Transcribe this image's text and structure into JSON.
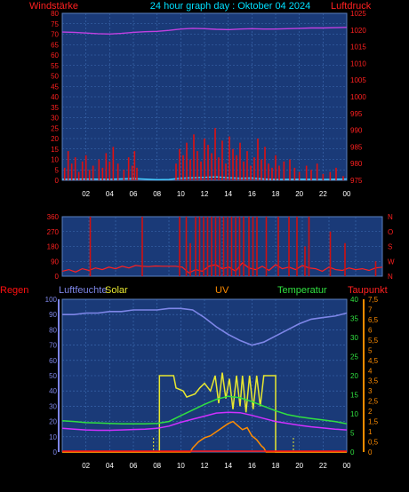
{
  "page_title": "24 hour graph day : Oktober 04 2024",
  "colors": {
    "background": "#000000",
    "plot_bg": "#1a3a78",
    "grid": "#3f6eb4",
    "axis_red": "#ff2020",
    "wind": "#e01010",
    "gust": "#40d0ff",
    "pressure": "#c040e0",
    "direction": "#d01010",
    "humidity": "#7e86e8",
    "solar": "#e8e830",
    "uv": "#ff8c00",
    "temperature": "#30e040",
    "dewpoint": "#d030ff",
    "rain": "#ff1010",
    "title": "#00e0ff"
  },
  "chart_data": [
    {
      "type": "line",
      "name": "wind-pressure",
      "left_label": "Windstärke",
      "right_label": "Luftdruck",
      "left_ticks": [
        "0",
        "5",
        "10",
        "15",
        "20",
        "25",
        "30",
        "35",
        "40",
        "45",
        "50",
        "55",
        "60",
        "65",
        "70",
        "75",
        "80"
      ],
      "right_ticks": [
        "975",
        "980",
        "985",
        "990",
        "995",
        "1000",
        "1005",
        "1010",
        "1015",
        "1020",
        "1025"
      ],
      "ylim_left": [
        0,
        80
      ],
      "ylim_right": [
        975,
        1025
      ],
      "x_ticks": [
        "02",
        "04",
        "06",
        "08",
        "10",
        "12",
        "14",
        "16",
        "18",
        "20",
        "22",
        "00"
      ],
      "xlim_hours": [
        0,
        24
      ],
      "series": [
        {
          "key": "pressure",
          "axis": "right",
          "x": [
            0,
            1,
            2,
            3,
            4,
            5,
            6,
            7,
            8,
            9,
            10,
            11,
            12,
            13,
            14,
            15,
            16,
            17,
            18,
            19,
            20,
            21,
            22,
            23,
            24
          ],
          "y": [
            1019.4,
            1019.3,
            1019.1,
            1018.9,
            1018.8,
            1019.0,
            1019.3,
            1019.5,
            1019.6,
            1019.9,
            1020.3,
            1020.5,
            1020.4,
            1020.2,
            1020.1,
            1020.3,
            1020.4,
            1020.3,
            1020.3,
            1020.4,
            1020.5,
            1020.6,
            1020.6,
            1020.7,
            1020.8
          ]
        },
        {
          "key": "gust",
          "axis": "left",
          "x": [
            0,
            2,
            4,
            5,
            6,
            8,
            9,
            10,
            11,
            12,
            13,
            14,
            15,
            16,
            17,
            18,
            20,
            22,
            24
          ],
          "y": [
            0.5,
            0.6,
            0.5,
            0.7,
            0.8,
            0.3,
            0.4,
            1.0,
            1.2,
            1.4,
            1.6,
            1.2,
            1.0,
            1.1,
            0.6,
            0.4,
            0.5,
            0.4,
            0.6
          ]
        },
        {
          "key": "wind",
          "axis": "left",
          "style": "spikes",
          "x": [
            0.2,
            0.5,
            0.8,
            1.1,
            1.4,
            1.7,
            2.0,
            2.3,
            2.6,
            3.1,
            3.4,
            3.7,
            4.0,
            4.3,
            4.7,
            5.2,
            5.6,
            5.9,
            6.1,
            6.3,
            9.6,
            9.9,
            10.2,
            10.5,
            10.8,
            11.1,
            11.4,
            11.7,
            12.0,
            12.3,
            12.6,
            12.9,
            13.2,
            13.5,
            13.8,
            14.1,
            14.4,
            14.7,
            15.0,
            15.3,
            15.6,
            15.9,
            16.2,
            16.5,
            16.8,
            17.1,
            17.4,
            17.7,
            18.0,
            18.3,
            18.7,
            19.2,
            19.6,
            20.0,
            20.6,
            21.0,
            21.5,
            22.0,
            22.6,
            23.1,
            23.7
          ],
          "y": [
            6,
            14,
            8,
            11,
            4,
            9,
            12,
            5,
            7,
            10,
            6,
            13,
            9,
            16,
            8,
            5,
            11,
            7,
            14,
            6,
            8,
            15,
            12,
            18,
            10,
            22,
            14,
            9,
            20,
            17,
            13,
            25,
            11,
            19,
            8,
            21,
            15,
            12,
            18,
            9,
            14,
            7,
            11,
            20,
            10,
            16,
            8,
            6,
            12,
            7,
            9,
            10,
            6,
            4,
            7,
            5,
            8,
            3,
            4,
            6,
            2
          ]
        }
      ]
    },
    {
      "type": "line",
      "name": "wind-direction",
      "left_ticks": [
        "0",
        "90",
        "180",
        "270",
        "360"
      ],
      "right_ticks": [
        "N",
        "W",
        "S",
        "O",
        "N"
      ],
      "ylim_left": [
        0,
        360
      ],
      "x_ticks": [],
      "xlim_hours": [
        0,
        24
      ],
      "series": [
        {
          "key": "direction",
          "axis": "left",
          "x": [
            0,
            0.5,
            1,
            1.5,
            2,
            2.5,
            3,
            3.5,
            4,
            4.5,
            5,
            5.5,
            6,
            6.5,
            7,
            7.5,
            8,
            8.5,
            9,
            9.5,
            10,
            10.5,
            11,
            11.5,
            12,
            12.5,
            13,
            13.5,
            14,
            14.5,
            15,
            15.5,
            16,
            16.5,
            17,
            17.5,
            18,
            18.5,
            19,
            19.5,
            20,
            20.5,
            21,
            21.5,
            22,
            22.5,
            23,
            23.5,
            24
          ],
          "y": [
            30,
            40,
            25,
            45,
            35,
            50,
            40,
            55,
            45,
            60,
            50,
            65,
            60,
            58,
            62,
            60,
            60,
            60,
            55,
            20,
            40,
            30,
            60,
            70,
            45,
            55,
            30,
            80,
            50,
            40,
            60,
            35,
            70,
            45,
            55,
            40,
            65,
            50,
            45,
            30,
            55,
            40,
            35,
            50,
            40,
            45,
            35,
            50,
            55
          ]
        },
        {
          "key": "direction_spikes",
          "axis": "left",
          "style": "spikes",
          "x": [
            2.1,
            6.0,
            8.8,
            9.3,
            9.6,
            10.0,
            10.3,
            10.6,
            10.9,
            11.2,
            11.5,
            11.8,
            12.1,
            12.4,
            12.7,
            13.0,
            13.3,
            13.6,
            14.0,
            14.3,
            14.6,
            15.3,
            16.2,
            17.0,
            17.6,
            18.2,
            18.5,
            20.1,
            21.2,
            23.5
          ],
          "y": [
            360,
            360,
            360,
            360,
            200,
            360,
            360,
            360,
            360,
            360,
            360,
            360,
            360,
            360,
            360,
            360,
            360,
            360,
            360,
            360,
            360,
            360,
            360,
            360,
            360,
            180,
            360,
            270,
            200,
            90
          ]
        }
      ]
    },
    {
      "type": "line",
      "name": "climate",
      "labels": {
        "rain": "Regen",
        "humidity": "Luftfeuchte",
        "solar": "Solar",
        "uv": "UV",
        "temperature": "Temperatur",
        "dewpoint": "Taupunkt"
      },
      "left_ticks": [
        "0",
        "10",
        "20",
        "30",
        "40",
        "50",
        "60",
        "70",
        "80",
        "90",
        "100"
      ],
      "temp_ticks": [
        "0",
        "5",
        "10",
        "15",
        "20",
        "25",
        "30",
        "35",
        "40"
      ],
      "uv_ticks": [
        "0",
        "0,5",
        "1",
        "1,5",
        "2",
        "2,5",
        "3",
        "3,5",
        "4",
        "4,5",
        "5",
        "5,5",
        "6",
        "6,5",
        "7",
        "7,5"
      ],
      "ylim_left": [
        0,
        100
      ],
      "ylim_temp": [
        0,
        40
      ],
      "ylim_uv": [
        0,
        7.5
      ],
      "x_ticks": [
        "02",
        "04",
        "06",
        "08",
        "10",
        "12",
        "14",
        "16",
        "18",
        "20",
        "22",
        "00"
      ],
      "xlim_hours": [
        0,
        24
      ],
      "series": [
        {
          "key": "humidity",
          "axis": "left",
          "x": [
            0,
            1,
            2,
            3,
            4,
            5,
            6,
            7,
            8,
            9,
            10,
            11,
            12,
            13,
            14,
            15,
            16,
            17,
            18,
            19,
            20,
            21,
            22,
            23,
            24
          ],
          "y": [
            90,
            90,
            91,
            91,
            92,
            92,
            93,
            93,
            93,
            94,
            94,
            93,
            88,
            82,
            77,
            73,
            70,
            72,
            76,
            80,
            84,
            87,
            88,
            89,
            91
          ]
        },
        {
          "key": "solar",
          "axis": "left",
          "x": [
            0,
            8.2,
            8.2,
            9.4,
            9.6,
            10.2,
            10.5,
            11.2,
            11.6,
            12.0,
            12.5,
            12.9,
            13.2,
            13.5,
            13.8,
            14.1,
            14.4,
            14.7,
            15.0,
            15.2,
            15.5,
            15.8,
            16.1,
            16.4,
            16.7,
            17.0,
            17.3,
            17.7,
            18.0,
            18.0,
            24
          ],
          "y": [
            0,
            0,
            50,
            50,
            42,
            40,
            36,
            38,
            42,
            45,
            40,
            50,
            32,
            52,
            35,
            48,
            28,
            50,
            30,
            50,
            26,
            50,
            28,
            50,
            30,
            50,
            50,
            50,
            50,
            0,
            0
          ]
        },
        {
          "key": "temperature",
          "axis": "temp",
          "x": [
            0,
            1,
            2,
            3,
            4,
            5,
            6,
            7,
            8,
            9,
            10,
            11,
            12,
            13,
            14,
            15,
            16,
            17,
            18,
            19,
            20,
            21,
            22,
            23,
            24
          ],
          "y": [
            8.2,
            8.0,
            7.7,
            7.6,
            7.5,
            7.4,
            7.4,
            7.4,
            7.5,
            8.0,
            9.5,
            11.0,
            12.5,
            13.8,
            14.6,
            14.2,
            13.2,
            12.0,
            10.8,
            9.8,
            9.2,
            8.8,
            8.4,
            8.0,
            7.4
          ]
        },
        {
          "key": "dewpoint",
          "axis": "temp",
          "x": [
            0,
            1,
            2,
            3,
            4,
            5,
            6,
            7,
            8,
            9,
            10,
            11,
            12,
            13,
            14,
            15,
            16,
            17,
            18,
            19,
            20,
            21,
            22,
            23,
            24
          ],
          "y": [
            6.2,
            6.0,
            5.8,
            5.7,
            5.7,
            5.8,
            5.9,
            6.0,
            6.2,
            6.8,
            7.8,
            8.6,
            9.4,
            10.2,
            10.4,
            10.3,
            9.6,
            8.8,
            8.0,
            7.5,
            7.0,
            6.6,
            6.3,
            6.0,
            5.8
          ]
        },
        {
          "key": "uv",
          "axis": "uv",
          "x": [
            0,
            10.8,
            11.0,
            11.5,
            12.0,
            12.5,
            13.0,
            13.5,
            14.0,
            14.4,
            14.8,
            15.2,
            15.6,
            16.0,
            16.4,
            16.8,
            17.0,
            17.2,
            24
          ],
          "y": [
            0,
            0,
            0.2,
            0.5,
            0.7,
            0.8,
            1.0,
            1.2,
            1.4,
            1.5,
            1.3,
            1.1,
            1.2,
            0.8,
            0.6,
            0.3,
            0.2,
            0,
            0
          ]
        }
      ],
      "markers_hours": [
        7.7,
        19.5
      ]
    }
  ]
}
